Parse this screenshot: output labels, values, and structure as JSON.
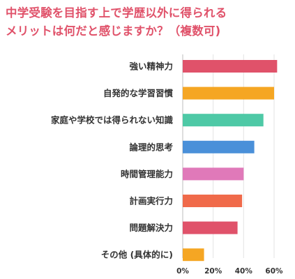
{
  "title_lines": [
    "中学受験を目指す上で学歴以外に得られる",
    "メリットは何だと感じますか？（複数可)"
  ],
  "chart_data": {
    "type": "bar",
    "orientation": "horizontal",
    "title": "中学受験を目指す上で学歴以外に得られるメリットは何だと感じますか？（複数可)",
    "categories": [
      "強い精神力",
      "自発的な学習習慣",
      "家庭や学校では得られない知識",
      "論理的思考",
      "時間管理能力",
      "計画実行力",
      "問題解決力",
      "その他 (具体的に)"
    ],
    "values": [
      62,
      60,
      53,
      47,
      40,
      39,
      36,
      14
    ],
    "colors": [
      "#e0526a",
      "#f5a623",
      "#4ec9a6",
      "#4a90d9",
      "#e079b9",
      "#f06a4a",
      "#e0526a",
      "#f5a623"
    ],
    "unit": "%",
    "xlim": [
      0,
      60
    ],
    "xticks": [
      0,
      20,
      40,
      60
    ],
    "xtick_labels": [
      "0%",
      "20%",
      "40%",
      "60%"
    ],
    "grid": true,
    "xlabel": "",
    "ylabel": ""
  }
}
